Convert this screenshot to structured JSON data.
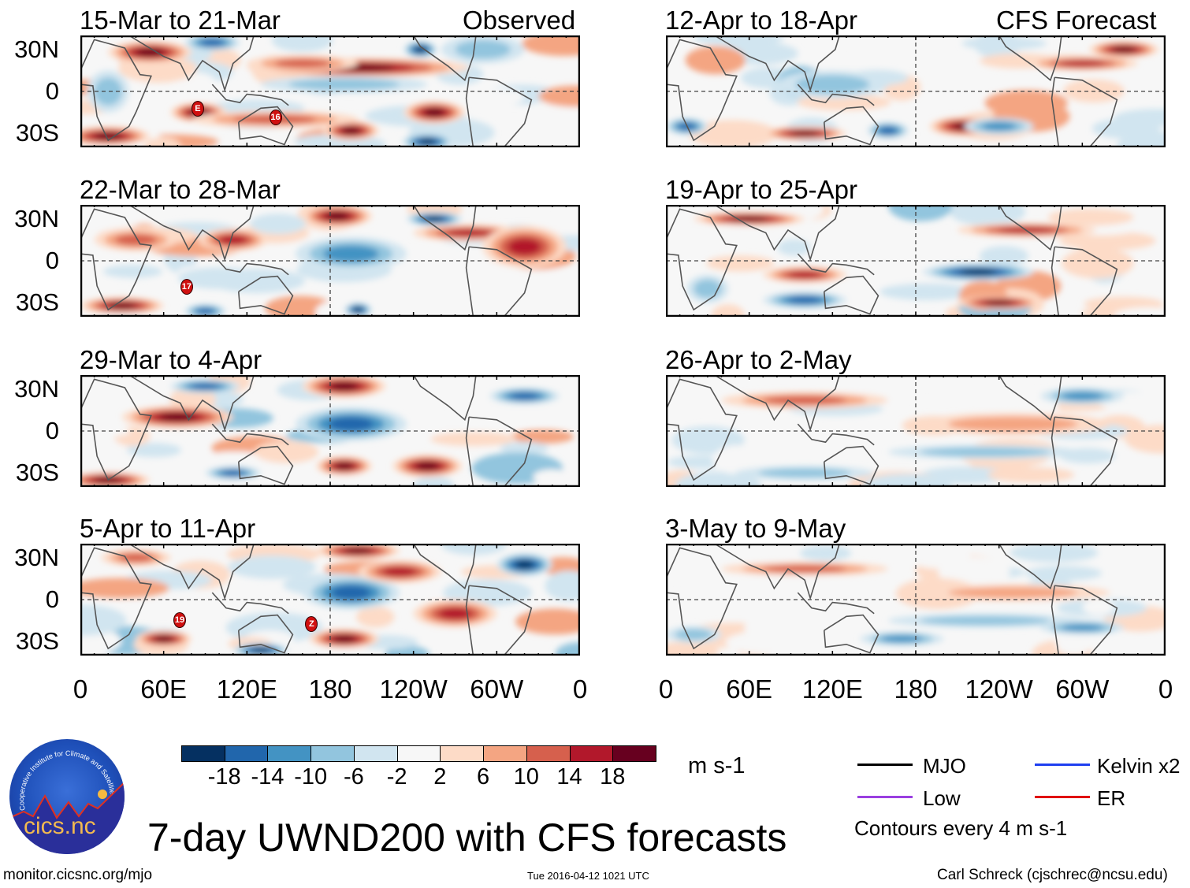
{
  "header": {
    "observed_label": "Observed",
    "forecast_label": "CFS Forecast"
  },
  "panels": {
    "observed": [
      {
        "title": "15-Mar to 21-Mar",
        "markers": [
          "E",
          "16"
        ]
      },
      {
        "title": "22-Mar to 28-Mar",
        "markers": [
          "17"
        ]
      },
      {
        "title": "29-Mar to 4-Apr",
        "markers": []
      },
      {
        "title": "5-Apr to 11-Apr",
        "markers": [
          "19",
          "Z"
        ]
      }
    ],
    "forecast": [
      {
        "title": "12-Apr to 18-Apr"
      },
      {
        "title": "19-Apr to 25-Apr"
      },
      {
        "title": "26-Apr to 2-May"
      },
      {
        "title": "3-May to 9-May"
      }
    ]
  },
  "axes": {
    "lat_labels": [
      "30N",
      "0",
      "30S"
    ],
    "lon_labels": [
      "0",
      "60E",
      "120E",
      "180",
      "120W",
      "60W",
      "0"
    ]
  },
  "colorbar": {
    "colors": [
      "#053061",
      "#2166ac",
      "#4393c3",
      "#92c5de",
      "#d1e5f0",
      "#f7f7f7",
      "#fddbc7",
      "#f4a582",
      "#d6604d",
      "#b2182b",
      "#67001f"
    ],
    "labels": [
      "-18",
      "-14",
      "-10",
      "-6",
      "-2",
      "2",
      "6",
      "10",
      "14",
      "18"
    ],
    "units": "m s-1"
  },
  "legend": {
    "items": [
      {
        "label": "MJO",
        "color": "#000000"
      },
      {
        "label": "Kelvin x2",
        "color": "#1f3ff0"
      },
      {
        "label": "Low",
        "color": "#9a3fe0"
      },
      {
        "label": "ER",
        "color": "#e01010"
      }
    ],
    "contours_note": "Contours every 4 m s-1"
  },
  "footer": {
    "title": "7-day UWND200 with CFS forecasts",
    "url": "monitor.cicsnc.org/mjo",
    "timestamp": "Tue 2016-04-12 1021 UTC",
    "credit": "Carl Schreck (cjschrec@ncsu.edu)",
    "logo_text": "cics.nc",
    "logo_ring_text": "Cooperative Institute for Climate and Satellites"
  }
}
